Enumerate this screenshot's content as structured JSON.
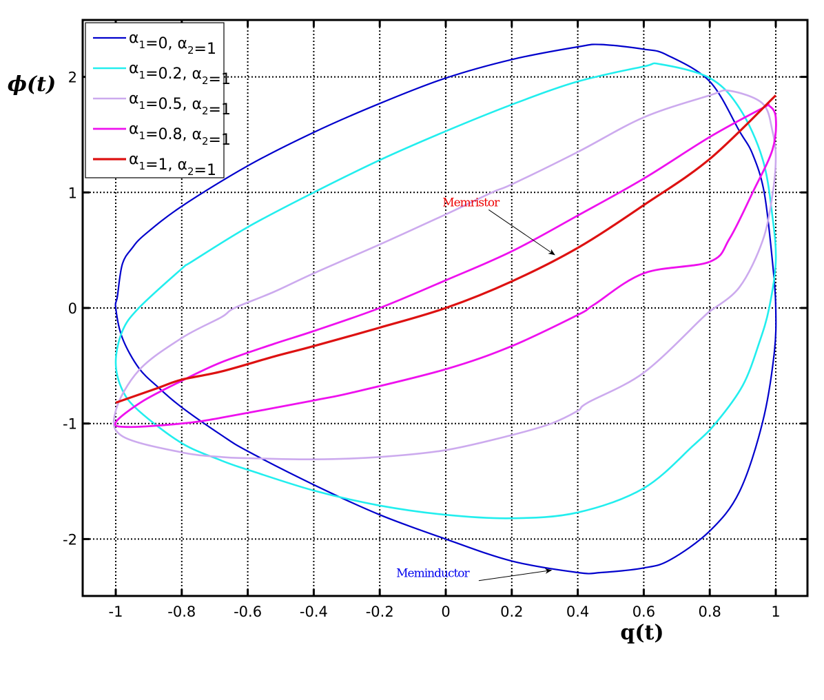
{
  "chart_data": {
    "type": "line",
    "title": "",
    "xlabel": "q(t)",
    "ylabel": "ϕ(t)",
    "xlim": [
      -1.1,
      1.1
    ],
    "ylim": [
      -2.5,
      2.5
    ],
    "grid": true,
    "grid_style": "dotted",
    "legend_position": "upper left",
    "x_ticks": [
      -1,
      -0.8,
      -0.6,
      -0.4,
      -0.2,
      0,
      0.2,
      0.4,
      0.6,
      0.8,
      1
    ],
    "x_tick_labels": [
      "-1",
      "-0.8",
      "-0.6",
      "-0.4",
      "-0.2",
      "0",
      "0.2",
      "0.4",
      "0.6",
      "0.8",
      "1"
    ],
    "y_ticks": [
      -2,
      -1,
      0,
      1,
      2
    ],
    "y_tick_labels": [
      "-2",
      "-1",
      "0",
      "1",
      "2"
    ],
    "series": [
      {
        "name": "α1=0, α2=1",
        "legend": {
          "a1": "0",
          "a2": "1"
        },
        "color": "#0000CC",
        "width": 2.2,
        "closed": true,
        "points": [
          [
            -1.0,
            0.0
          ],
          [
            -0.995,
            0.1
          ],
          [
            -0.98,
            0.38
          ],
          [
            -0.95,
            0.52
          ],
          [
            -0.91,
            0.64
          ],
          [
            -0.8,
            0.88
          ],
          [
            -0.6,
            1.23
          ],
          [
            -0.4,
            1.52
          ],
          [
            -0.2,
            1.77
          ],
          [
            0.0,
            1.99
          ],
          [
            0.2,
            2.15
          ],
          [
            0.4,
            2.26
          ],
          [
            0.47,
            2.28
          ],
          [
            0.6,
            2.24
          ],
          [
            0.67,
            2.19
          ],
          [
            0.8,
            1.96
          ],
          [
            0.89,
            1.53
          ],
          [
            0.93,
            1.33
          ],
          [
            0.965,
            1.0
          ],
          [
            0.99,
            0.4
          ],
          [
            1.0,
            0.0
          ],
          [
            0.995,
            -0.4
          ],
          [
            0.96,
            -0.99
          ],
          [
            0.89,
            -1.59
          ],
          [
            0.8,
            -1.93
          ],
          [
            0.68,
            -2.18
          ],
          [
            0.6,
            -2.25
          ],
          [
            0.47,
            -2.29
          ],
          [
            0.4,
            -2.29
          ],
          [
            0.2,
            -2.19
          ],
          [
            0.0,
            -2.0
          ],
          [
            -0.2,
            -1.79
          ],
          [
            -0.4,
            -1.53
          ],
          [
            -0.6,
            -1.24
          ],
          [
            -0.68,
            -1.1
          ],
          [
            -0.8,
            -0.86
          ],
          [
            -0.87,
            -0.69
          ],
          [
            -0.93,
            -0.52
          ],
          [
            -0.98,
            -0.26
          ]
        ]
      },
      {
        "name": "α1=0.2, α2=1",
        "legend": {
          "a1": "0.2",
          "a2": "1"
        },
        "color": "#22EEEE",
        "width": 2.6,
        "closed": true,
        "points": [
          [
            -1.0,
            -0.47
          ],
          [
            -0.98,
            -0.2
          ],
          [
            -0.93,
            0.0
          ],
          [
            -0.8,
            0.34
          ],
          [
            -0.77,
            0.4
          ],
          [
            -0.6,
            0.7
          ],
          [
            -0.4,
            1.0
          ],
          [
            -0.2,
            1.28
          ],
          [
            0.0,
            1.53
          ],
          [
            0.2,
            1.76
          ],
          [
            0.4,
            1.96
          ],
          [
            0.6,
            2.09
          ],
          [
            0.65,
            2.11
          ],
          [
            0.8,
            1.99
          ],
          [
            0.89,
            1.73
          ],
          [
            0.96,
            1.29
          ],
          [
            0.99,
            0.79
          ],
          [
            1.0,
            0.4
          ],
          [
            0.98,
            0.0
          ],
          [
            0.95,
            -0.3
          ],
          [
            0.9,
            -0.67
          ],
          [
            0.82,
            -0.99
          ],
          [
            0.75,
            -1.19
          ],
          [
            0.6,
            -1.56
          ],
          [
            0.4,
            -1.77
          ],
          [
            0.2,
            -1.82
          ],
          [
            0.0,
            -1.79
          ],
          [
            -0.2,
            -1.71
          ],
          [
            -0.4,
            -1.58
          ],
          [
            -0.6,
            -1.4
          ],
          [
            -0.68,
            -1.32
          ],
          [
            -0.8,
            -1.17
          ],
          [
            -0.93,
            -0.89
          ],
          [
            -0.98,
            -0.71
          ]
        ]
      },
      {
        "name": "α1=0.5, α2=1",
        "legend": {
          "a1": "0.5",
          "a2": "1"
        },
        "color": "#CCAAEE",
        "width": 2.6,
        "closed": true,
        "points": [
          [
            -1.0,
            -0.89
          ],
          [
            -0.93,
            -0.54
          ],
          [
            -0.8,
            -0.26
          ],
          [
            -0.68,
            -0.08
          ],
          [
            -0.64,
            0.0
          ],
          [
            -0.52,
            0.14
          ],
          [
            -0.4,
            0.3
          ],
          [
            -0.2,
            0.55
          ],
          [
            0.0,
            0.81
          ],
          [
            0.14,
            1.0
          ],
          [
            0.2,
            1.07
          ],
          [
            0.4,
            1.35
          ],
          [
            0.6,
            1.65
          ],
          [
            0.8,
            1.84
          ],
          [
            0.86,
            1.88
          ],
          [
            0.96,
            1.77
          ],
          [
            0.99,
            1.53
          ],
          [
            1.0,
            1.3
          ],
          [
            0.99,
            0.98
          ],
          [
            0.96,
            0.58
          ],
          [
            0.89,
            0.18
          ],
          [
            0.8,
            -0.03
          ],
          [
            0.78,
            -0.08
          ],
          [
            0.6,
            -0.56
          ],
          [
            0.43,
            -0.82
          ],
          [
            0.4,
            -0.89
          ],
          [
            0.32,
            -1.0
          ],
          [
            0.2,
            -1.1
          ],
          [
            0.0,
            -1.23
          ],
          [
            -0.2,
            -1.29
          ],
          [
            -0.4,
            -1.31
          ],
          [
            -0.6,
            -1.3
          ],
          [
            -0.68,
            -1.29
          ],
          [
            -0.8,
            -1.25
          ],
          [
            -0.98,
            -1.11
          ]
        ]
      },
      {
        "name": "α1=0.8, α2=1",
        "legend": {
          "a1": "0.8",
          "a2": "1"
        },
        "color": "#EE11EE",
        "width": 2.8,
        "closed": true,
        "points": [
          [
            -1.0,
            -0.99
          ],
          [
            -0.92,
            -0.81
          ],
          [
            -0.8,
            -0.63
          ],
          [
            -0.68,
            -0.47
          ],
          [
            -0.52,
            -0.31
          ],
          [
            -0.4,
            -0.2
          ],
          [
            -0.2,
            0.0
          ],
          [
            0.0,
            0.24
          ],
          [
            0.2,
            0.49
          ],
          [
            0.4,
            0.8
          ],
          [
            0.6,
            1.12
          ],
          [
            0.8,
            1.48
          ],
          [
            0.96,
            1.73
          ],
          [
            0.98,
            1.75
          ],
          [
            1.0,
            1.65
          ],
          [
            0.99,
            1.37
          ],
          [
            0.93,
            1.0
          ],
          [
            0.86,
            0.6
          ],
          [
            0.8,
            0.4
          ],
          [
            0.6,
            0.3
          ],
          [
            0.45,
            0.03
          ],
          [
            0.4,
            -0.06
          ],
          [
            0.2,
            -0.33
          ],
          [
            0.0,
            -0.53
          ],
          [
            -0.28,
            -0.73
          ],
          [
            -0.4,
            -0.8
          ],
          [
            -0.68,
            -0.95
          ],
          [
            -0.8,
            -1.0
          ],
          [
            -0.96,
            -1.03
          ]
        ]
      },
      {
        "name": "α1=1, α2=1",
        "legend": {
          "a1": "1",
          "a2": "1"
        },
        "color": "#DD1111",
        "width": 3.2,
        "closed": false,
        "points": [
          [
            -1.0,
            -0.82
          ],
          [
            -0.87,
            -0.69
          ],
          [
            -0.8,
            -0.62
          ],
          [
            -0.68,
            -0.55
          ],
          [
            -0.52,
            -0.42
          ],
          [
            -0.4,
            -0.33
          ],
          [
            -0.2,
            -0.17
          ],
          [
            0.0,
            0.0
          ],
          [
            0.2,
            0.23
          ],
          [
            0.4,
            0.52
          ],
          [
            0.6,
            0.89
          ],
          [
            0.8,
            1.29
          ],
          [
            1.0,
            1.84
          ]
        ]
      }
    ],
    "annotations": [
      {
        "text": "Memristor",
        "color": "#EE0000",
        "text_xy": [
          -0.01,
          0.88
        ],
        "arrow_from": [
          0.13,
          0.85
        ],
        "arrow_to": [
          0.33,
          0.46
        ]
      },
      {
        "text": "Meminductor",
        "color": "#0000EE",
        "text_xy": [
          -0.15,
          -2.33
        ],
        "arrow_from": [
          0.1,
          -2.36
        ],
        "arrow_to": [
          0.32,
          -2.27
        ]
      }
    ]
  },
  "legend": {
    "items": [
      {
        "a1": "0",
        "a2": "1"
      },
      {
        "a1": "0.2",
        "a2": "1"
      },
      {
        "a1": "0.5",
        "a2": "1"
      },
      {
        "a1": "0.8",
        "a2": "1"
      },
      {
        "a1": "1",
        "a2": "1"
      }
    ]
  },
  "axes": {
    "xlabel": "q(t)",
    "ylabel": "ϕ(t)"
  }
}
